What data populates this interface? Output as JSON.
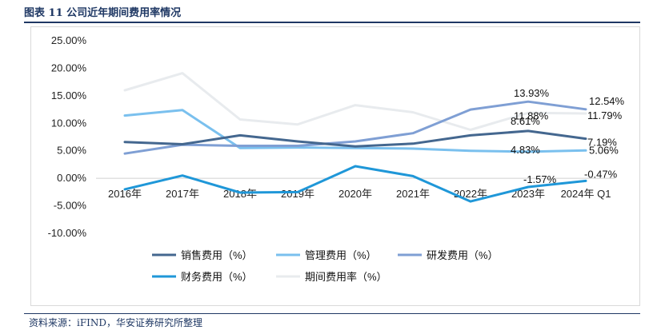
{
  "figure_title": "图表 11 公司近年期间费用率情况",
  "source": "资料来源：iFIND，华安证券研究所整理",
  "chart_data": {
    "type": "line",
    "categories": [
      "2016年",
      "2017年",
      "2018年",
      "2019年",
      "2020年",
      "2021年",
      "2022年",
      "2023年",
      "2024年 Q1"
    ],
    "ylim": [
      -10,
      25
    ],
    "yticks": [
      "25.00%",
      "20.00%",
      "15.00%",
      "10.00%",
      "5.00%",
      "0.00%",
      "-5.00%",
      "-10.00%"
    ],
    "grid": false,
    "legend_position": "bottom",
    "series": [
      {
        "name": "销售费用（%）",
        "color": "#44678f",
        "values": [
          6.6,
          6.2,
          7.8,
          6.7,
          5.8,
          6.3,
          7.8,
          8.61,
          7.19
        ]
      },
      {
        "name": "管理费用（%）",
        "color": "#7ac0ee",
        "values": [
          11.4,
          12.4,
          5.5,
          5.6,
          5.5,
          5.4,
          5.0,
          4.83,
          5.06
        ]
      },
      {
        "name": "研发费用（%）",
        "color": "#7f9fd4",
        "values": [
          4.5,
          6.1,
          5.9,
          5.9,
          6.7,
          8.2,
          12.5,
          13.93,
          12.54
        ]
      },
      {
        "name": "财务费用（%）",
        "color": "#1f97d8",
        "values": [
          -2.0,
          0.5,
          -2.6,
          -2.5,
          2.2,
          0.4,
          -4.2,
          -1.57,
          -0.47
        ]
      },
      {
        "name": "期间费用率（%）",
        "color": "#e8ebee",
        "values": [
          16.0,
          19.1,
          10.7,
          9.8,
          13.3,
          12.0,
          8.8,
          11.88,
          11.79
        ]
      }
    ],
    "data_labels": [
      {
        "series": 2,
        "index": 7,
        "text": "13.93%"
      },
      {
        "series": 2,
        "index": 8,
        "text": "12.54%"
      },
      {
        "series": 4,
        "index": 7,
        "text": "11.88%"
      },
      {
        "series": 4,
        "index": 8,
        "text": "11.79%"
      },
      {
        "series": 0,
        "index": 7,
        "text": "8.61%"
      },
      {
        "series": 0,
        "index": 8,
        "text": "7.19%"
      },
      {
        "series": 1,
        "index": 7,
        "text": "4.83%"
      },
      {
        "series": 1,
        "index": 8,
        "text": "5.06%"
      },
      {
        "series": 3,
        "index": 7,
        "text": "-1.57%"
      },
      {
        "series": 3,
        "index": 8,
        "text": "-0.47%"
      }
    ]
  }
}
